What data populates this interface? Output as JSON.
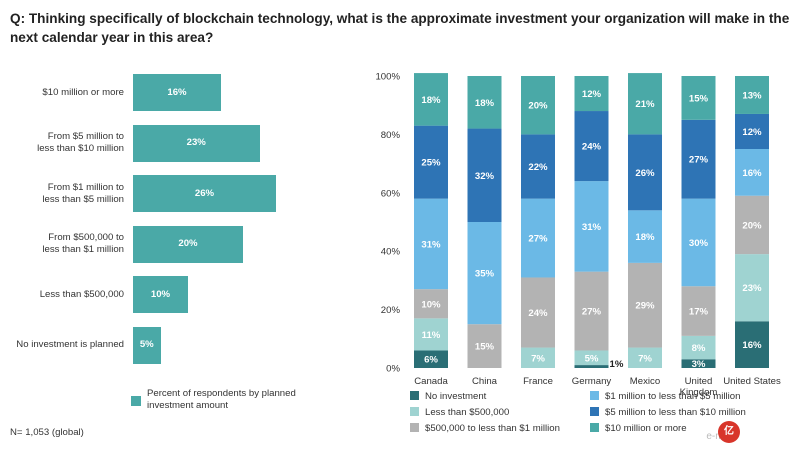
{
  "question": "Q: Thinking specifically of blockchain technology, what is the approximate investment your organization will make in the next calendar year in this area?",
  "left_chart": {
    "type": "bar",
    "orientation": "horizontal",
    "categories": [
      "$10 million or more",
      "From $5 million to less than $10 million",
      "From $1 million to less than $5 million",
      "From $500,000 to less than $1 million",
      "Less than $500,000",
      "No investment is planned"
    ],
    "category_lines": [
      [
        "$10 million or more"
      ],
      [
        "From $5 million to",
        "less than $10 million"
      ],
      [
        "From $1 million to",
        "less than $5 million"
      ],
      [
        "From $500,000 to",
        "less than $1 million"
      ],
      [
        "Less than $500,000"
      ],
      [
        "No investment is planned"
      ]
    ],
    "values": [
      16,
      23,
      26,
      20,
      10,
      5
    ],
    "value_labels": [
      "16%",
      "23%",
      "26%",
      "20%",
      "10%",
      "5%"
    ],
    "legend_label": "Percent of respondents by planned investment amount",
    "color": "#4aa9a7"
  },
  "note": "N= 1,053 (global)",
  "chart_data": {
    "type": "bar",
    "stacked": true,
    "categories": [
      "Canada",
      "China",
      "France",
      "Germany",
      "Mexico",
      "United Kingdom",
      "United States"
    ],
    "category_lines": [
      [
        "Canada"
      ],
      [
        "China"
      ],
      [
        "France"
      ],
      [
        "Germany"
      ],
      [
        "Mexico"
      ],
      [
        "United",
        "Kingdom"
      ],
      [
        "United States"
      ]
    ],
    "series": [
      {
        "name": "No investment",
        "color": "#2a6e75",
        "values": [
          6,
          0,
          0,
          1,
          0,
          3,
          16
        ],
        "labels": [
          "6%",
          "",
          "",
          "1%",
          "",
          "3%",
          "16%"
        ]
      },
      {
        "name": "Less than $500,000",
        "color": "#9fd3d1",
        "values": [
          11,
          0,
          7,
          5,
          7,
          8,
          23
        ],
        "labels": [
          "11%",
          "",
          "7%",
          "5%",
          "7%",
          "8%",
          "23%"
        ]
      },
      {
        "name": "$500,000 to less than $1 million",
        "color": "#b3b3b3",
        "values": [
          10,
          15,
          24,
          27,
          29,
          17,
          20
        ],
        "labels": [
          "10%",
          "15%",
          "24%",
          "27%",
          "29%",
          "17%",
          "20%"
        ]
      },
      {
        "name": "$1 million to less than $5 million",
        "color": "#6bb9e6",
        "values": [
          31,
          35,
          27,
          31,
          18,
          30,
          16
        ],
        "labels": [
          "31%",
          "35%",
          "27%",
          "31%",
          "18%",
          "30%",
          "16%"
        ]
      },
      {
        "name": "$5 million to less than $10 million",
        "color": "#2e74b5",
        "values": [
          25,
          32,
          22,
          24,
          26,
          27,
          12
        ],
        "labels": [
          "25%",
          "32%",
          "22%",
          "24%",
          "26%",
          "27%",
          "12%"
        ]
      },
      {
        "name": "$10 million or more",
        "color": "#4aa9a7",
        "values": [
          18,
          18,
          20,
          12,
          21,
          15,
          13
        ],
        "labels": [
          "18%",
          "18%",
          "20%",
          "12%",
          "21%",
          "15%",
          "13%"
        ]
      }
    ],
    "y_ticks": [
      "0%",
      "20%",
      "40%",
      "60%",
      "80%",
      "100%"
    ],
    "ylim": [
      0,
      100
    ],
    "legend_order": [
      0,
      3,
      1,
      4,
      2,
      5
    ]
  },
  "watermark": "e-more",
  "seal_text": "亿"
}
